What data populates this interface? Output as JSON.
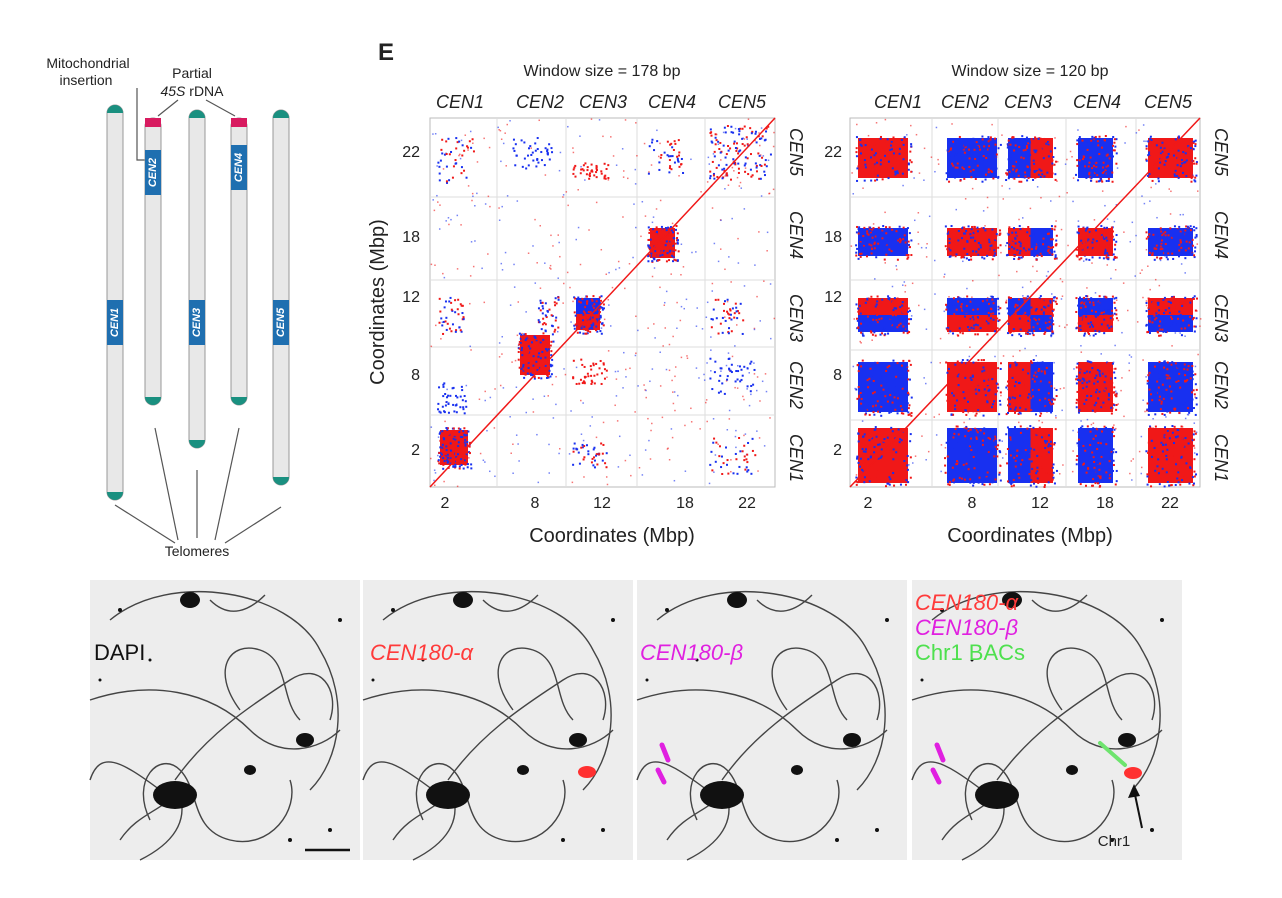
{
  "diagram": {
    "mitochondrial_label": [
      "Mitochondrial",
      "insertion"
    ],
    "rdna_label": {
      "line1": "Partial",
      "italic": "45S",
      "rest": "rDNA"
    },
    "chromosomes": [
      "CEN1",
      "CEN2",
      "CEN3",
      "CEN4",
      "CEN5"
    ],
    "telomeres": "Telomeres"
  },
  "panel_label": "E",
  "dot_plots": [
    {
      "title": "Window size = 178 bp",
      "top_labels": [
        "CEN1",
        "CEN2",
        "CEN3",
        "CEN4",
        "CEN5"
      ],
      "right_labels": [
        "CEN5",
        "CEN4",
        "CEN3",
        "CEN2",
        "CEN1"
      ],
      "yticks": [
        22,
        18,
        12,
        8,
        2
      ],
      "xticks": [
        2,
        8,
        12,
        18,
        22
      ],
      "x_label": "Coordinates (Mbp)",
      "y_label": "Coordinates (Mbp)"
    },
    {
      "title": "Window size = 120 bp",
      "top_labels": [
        "CEN1",
        "CEN2",
        "CEN3",
        "CEN4",
        "CEN5"
      ],
      "right_labels": [
        "CEN5",
        "CEN4",
        "CEN3",
        "CEN2",
        "CEN1"
      ],
      "yticks": [
        22,
        18,
        12,
        8,
        2
      ],
      "xticks": [
        2,
        8,
        12,
        18,
        22
      ],
      "x_label": "Coordinates (Mbp)"
    }
  ],
  "microscopy": {
    "panels": [
      {
        "labels": [
          "DAPI"
        ]
      },
      {
        "labels": [
          "CEN180-α"
        ]
      },
      {
        "labels": [
          "CEN180-β"
        ]
      },
      {
        "labels": [
          "CEN180-α",
          "CEN180-β",
          "Chr1 BACs"
        ]
      }
    ],
    "arrow_label": "Chr1"
  }
}
